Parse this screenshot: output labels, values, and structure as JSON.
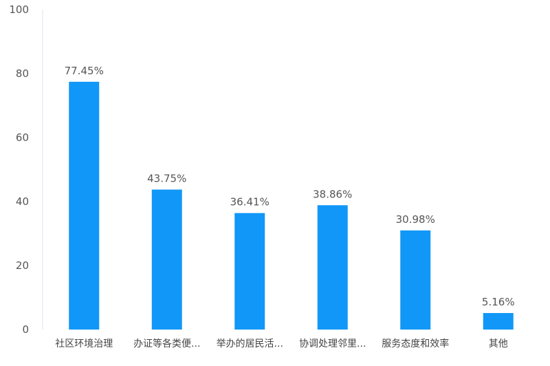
{
  "chart_data": {
    "type": "bar",
    "categories": [
      "社区环境治理",
      "办证等各类便...",
      "举办的居民活...",
      "协调处理邻里...",
      "服务态度和效率",
      "其他"
    ],
    "values": [
      77.45,
      43.75,
      36.41,
      38.86,
      30.98,
      5.16
    ],
    "data_labels": [
      "77.45%",
      "43.75%",
      "36.41%",
      "38.86%",
      "30.98%",
      "5.16%"
    ],
    "ylim": [
      0,
      100
    ],
    "yticks": [
      0,
      20,
      40,
      60,
      80,
      100
    ],
    "ytick_labels": [
      "0",
      "20",
      "40",
      "60",
      "80",
      "100"
    ],
    "grid": false,
    "colors": {
      "bar": "#1197F7",
      "axis": "#DCE3EC"
    }
  }
}
